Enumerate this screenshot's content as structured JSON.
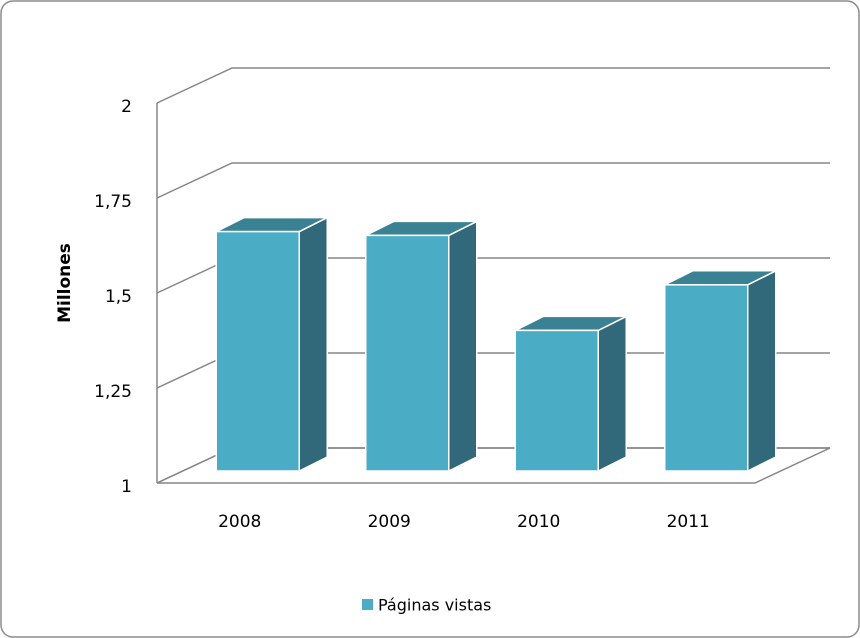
{
  "chart_data": {
    "type": "bar3d",
    "ylabel": "Millones",
    "categories": [
      "2008",
      "2009",
      "2010",
      "2011"
    ],
    "series": [
      {
        "name": "Páginas vistas",
        "color": "#4bacc6",
        "values": [
          1.63,
          1.62,
          1.37,
          1.49
        ]
      }
    ],
    "ylim": [
      1,
      2
    ],
    "yticks": [
      1,
      {
        "value": 1.25,
        "label": "1,25"
      },
      {
        "value": 1.5,
        "label": "1,5"
      },
      {
        "value": 1.75,
        "label": "1,75"
      },
      2
    ],
    "grid": true,
    "legend": "bottom"
  }
}
